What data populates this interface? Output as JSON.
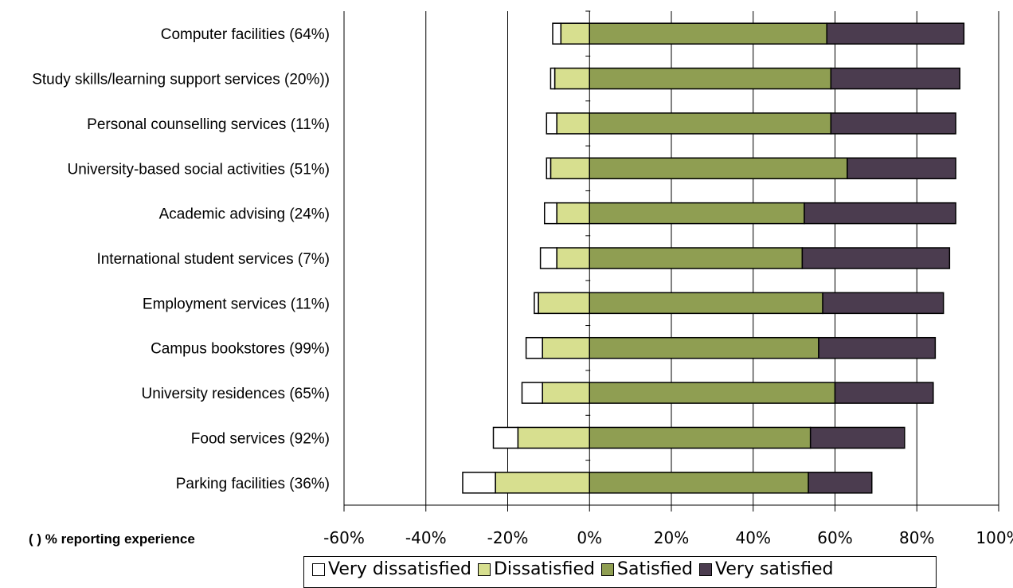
{
  "chart_data": {
    "type": "bar",
    "orientation": "horizontal",
    "stacked": "diverging",
    "categories": [
      "Computer facilities (64%)",
      "Study skills/learning support services  (20%))",
      "Personal counselling services (11%)",
      "University-based social activities (51%)",
      "Academic advising (24%)",
      "International student services (7%)",
      "Employment services (11%)",
      "Campus bookstores (99%)",
      "University residences (65%)",
      "Food services (92%)",
      "Parking facilities (36%)"
    ],
    "series": [
      {
        "name": "Very dissatisfied",
        "color": "#ffffff",
        "values": [
          -2,
          -1,
          -2.5,
          -1,
          -3,
          -4,
          -1,
          -4,
          -5,
          -6,
          -8
        ]
      },
      {
        "name": "Dissatisfied",
        "color": "#d7df8f",
        "values": [
          -7,
          -8.5,
          -8,
          -9.5,
          -8,
          -8,
          -12.5,
          -11.5,
          -11.5,
          -17.5,
          -23
        ]
      },
      {
        "name": "Satisfied",
        "color": "#8f9e52",
        "values": [
          58,
          59,
          59,
          63,
          52.5,
          52,
          57,
          56,
          60,
          54,
          53.5
        ]
      },
      {
        "name": "Very satisfied",
        "color": "#4b3c4f",
        "values": [
          33.5,
          31.5,
          30.5,
          26.5,
          37,
          36,
          29.5,
          28.5,
          24,
          23,
          15.5
        ]
      }
    ],
    "xlim": [
      -60,
      100
    ],
    "xticks": [
      -60,
      -40,
      -20,
      0,
      20,
      40,
      60,
      80,
      100
    ],
    "xtick_labels": [
      "-60%",
      "-40%",
      "-20%",
      "0%",
      "20%",
      "40%",
      "60%",
      "80%",
      "100%"
    ],
    "grid": "vertical",
    "legend_position": "bottom",
    "footnote": "( ) % reporting experience"
  },
  "legend": {
    "items": [
      "Very dissatisfied",
      "Dissatisfied",
      "Satisfied",
      "Very satisfied"
    ]
  }
}
